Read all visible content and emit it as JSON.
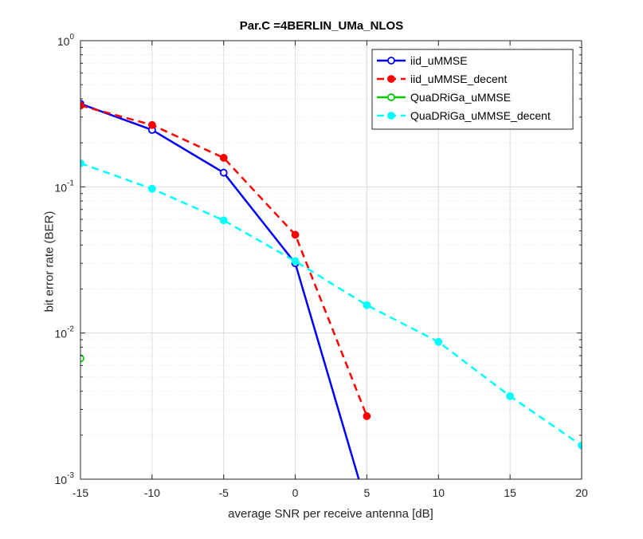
{
  "chart_data": {
    "type": "line",
    "title": "Par.C =4BERLIN_UMa_NLOS",
    "xlabel": "average SNR per receive antenna [dB]",
    "ylabel": "bit error rate (BER)",
    "xlim": [
      -15,
      20
    ],
    "ylim": [
      0.001,
      1
    ],
    "yscale": "log",
    "grid": true,
    "legend_position": "top-right",
    "xticks": [
      -15,
      -10,
      -5,
      0,
      5,
      10,
      15,
      20
    ],
    "yticks": [
      {
        "value": 1,
        "base": "10",
        "exp": "0"
      },
      {
        "value": 0.1,
        "base": "10",
        "exp": "-1"
      },
      {
        "value": 0.01,
        "base": "10",
        "exp": "-2"
      },
      {
        "value": 0.001,
        "base": "10",
        "exp": "-3"
      }
    ],
    "series": [
      {
        "name": "iid_uMMSE",
        "color": "#0000ff",
        "dash": "solid",
        "marker_filled": false,
        "x": [
          -15,
          -10,
          -5,
          0,
          5
        ],
        "y": [
          0.37,
          0.245,
          0.125,
          0.03,
          0.00065
        ]
      },
      {
        "name": "iid_uMMSE_decent",
        "color": "#ff0000",
        "dash": "dashed",
        "marker_filled": true,
        "x": [
          -15,
          -10,
          -5,
          0,
          5
        ],
        "y": [
          0.36,
          0.265,
          0.158,
          0.047,
          0.0027
        ]
      },
      {
        "name": "QuaDRiGa_uMMSE",
        "color": "#00cc00",
        "dash": "solid",
        "marker_filled": false,
        "x": [
          -15
        ],
        "y": [
          0.0067
        ]
      },
      {
        "name": "QuaDRiGa_uMMSE_decent",
        "color": "#00ffff",
        "dash": "dashed",
        "marker_filled": true,
        "x": [
          -15,
          -10,
          -5,
          0,
          5,
          10,
          15,
          20
        ],
        "y": [
          0.145,
          0.097,
          0.059,
          0.031,
          0.0155,
          0.0087,
          0.0037,
          0.0017
        ]
      }
    ]
  }
}
